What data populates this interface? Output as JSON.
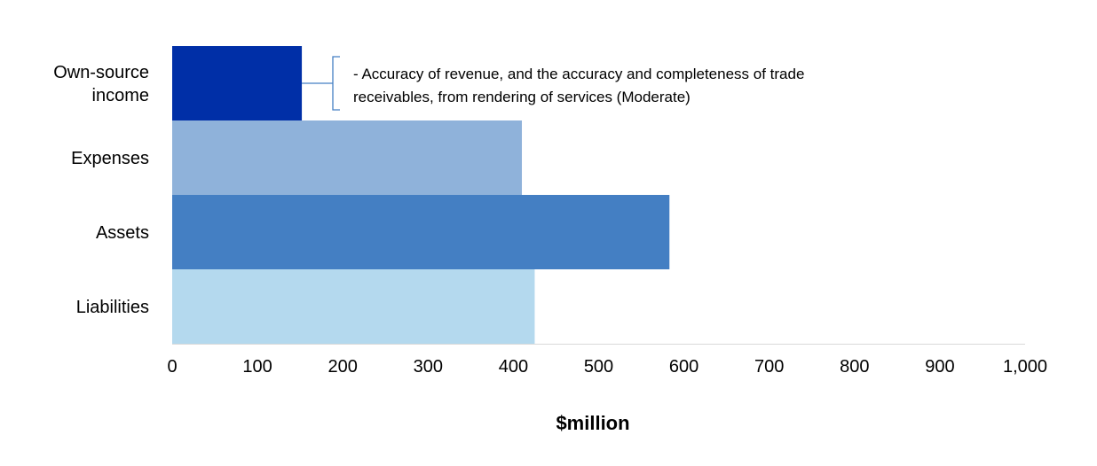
{
  "chart_data": {
    "type": "bar",
    "orientation": "horizontal",
    "categories": [
      [
        "Own-source",
        "income"
      ],
      [
        "Expenses"
      ],
      [
        "Assets"
      ],
      [
        "Liabilities"
      ]
    ],
    "values": [
      152,
      410,
      583,
      425
    ],
    "colors": [
      "#002fa7",
      "#8fb2da",
      "#447fc3",
      "#b4d9ee"
    ],
    "xlabel": "$million",
    "xlim": [
      0,
      1000
    ],
    "xticks": [
      {
        "value": 0,
        "label": "0"
      },
      {
        "value": 100,
        "label": "100"
      },
      {
        "value": 200,
        "label": "200"
      },
      {
        "value": 300,
        "label": "300"
      },
      {
        "value": 400,
        "label": "400"
      },
      {
        "value": 500,
        "label": "500"
      },
      {
        "value": 600,
        "label": "600"
      },
      {
        "value": 700,
        "label": "700"
      },
      {
        "value": 800,
        "label": "800"
      },
      {
        "value": 900,
        "label": "900"
      },
      {
        "value": 1000,
        "label": "1,000"
      }
    ],
    "grid": false,
    "annotations": [
      {
        "category_index": 0,
        "lines": [
          "- Accuracy of revenue, and the accuracy and completeness of trade",
          "receivables, from rendering of services (Moderate)"
        ],
        "bracket_color": "#447fc3"
      }
    ]
  }
}
